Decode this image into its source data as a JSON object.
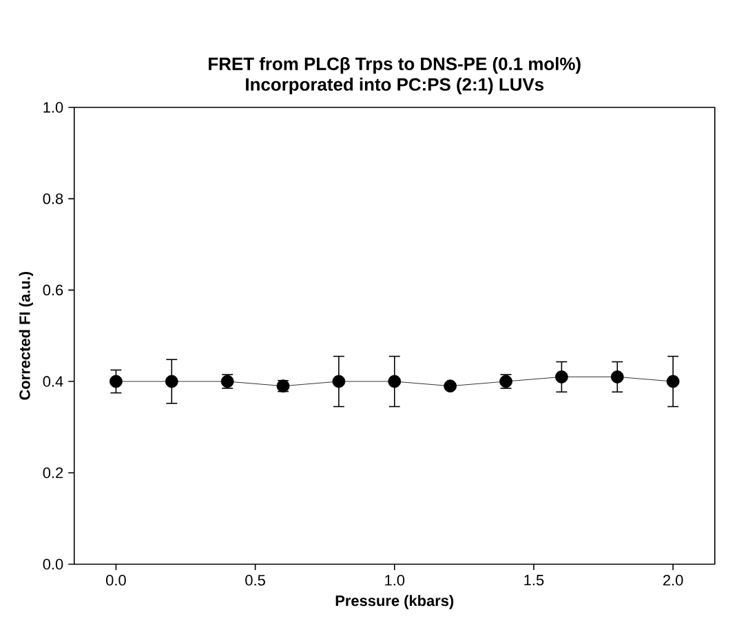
{
  "chart_data": {
    "type": "line",
    "title": "FRET from PLCβ Trps to DNS-PE (0.1 mol%)",
    "subtitle": "Incorporated into PC:PS (2:1) LUVs",
    "xlabel": "Pressure (kbars)",
    "ylabel": "Corrected FI (a.u.)",
    "x": [
      0,
      0.2,
      0.4,
      0.6,
      0.8,
      1.0,
      1.2,
      1.4,
      1.6,
      1.8,
      2.0
    ],
    "values": [
      0.4,
      0.4,
      0.4,
      0.39,
      0.4,
      0.4,
      0.39,
      0.4,
      0.41,
      0.41,
      0.4
    ],
    "errors": [
      0.025,
      0.048,
      0.015,
      0.012,
      0.055,
      0.055,
      null,
      0.015,
      0.033,
      0.033,
      0.055
    ],
    "color": "#000000",
    "marker": "circle",
    "line_style": "solid",
    "xlim": [
      -0.15,
      2.15
    ],
    "ylim": [
      0,
      1
    ],
    "xticks": [
      {
        "value": 0,
        "label": "0.0"
      },
      0.5,
      {
        "value": 1,
        "label": "1.0"
      },
      1.5,
      {
        "value": 2,
        "label": "2.0"
      }
    ],
    "yticks": [
      {
        "value": 0,
        "label": "0.0"
      },
      0.2,
      0.4,
      0.6,
      0.8,
      {
        "value": 1,
        "label": "1.0"
      }
    ]
  }
}
